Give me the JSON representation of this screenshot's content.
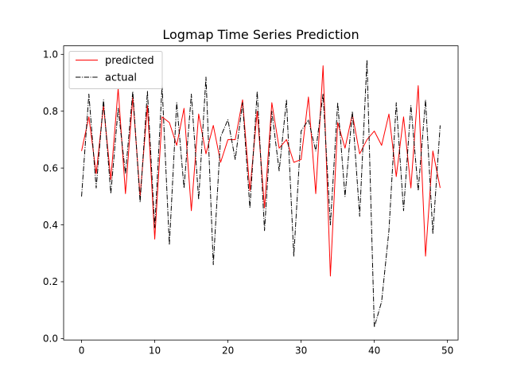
{
  "chart_data": {
    "type": "line",
    "title": "Logmap Time Series Prediction",
    "xlabel": "",
    "ylabel": "",
    "xlim": [
      -2.45,
      51.45
    ],
    "ylim": [
      -0.005,
      1.03
    ],
    "xticks": [
      0,
      10,
      20,
      30,
      40,
      50
    ],
    "yticks": [
      0.0,
      0.2,
      0.4,
      0.6,
      0.8,
      1.0
    ],
    "xtick_labels": [
      "0",
      "10",
      "20",
      "30",
      "40",
      "50"
    ],
    "ytick_labels": [
      "0.0",
      "0.2",
      "0.4",
      "0.6",
      "0.8",
      "1.0"
    ],
    "grid": false,
    "legend_position": "top-left",
    "x": [
      0,
      1,
      2,
      3,
      4,
      5,
      6,
      7,
      8,
      9,
      10,
      11,
      12,
      13,
      14,
      15,
      16,
      17,
      18,
      19,
      20,
      21,
      22,
      23,
      24,
      25,
      26,
      27,
      28,
      29,
      30,
      31,
      32,
      33,
      34,
      35,
      36,
      37,
      38,
      39,
      40,
      41,
      42,
      43,
      44,
      45,
      46,
      47,
      48,
      49
    ],
    "series": [
      {
        "name": "predicted",
        "color": "#ff0000",
        "style": "solid",
        "values": [
          0.66,
          0.78,
          0.58,
          0.82,
          0.56,
          0.88,
          0.51,
          0.85,
          0.5,
          0.82,
          0.35,
          0.78,
          0.76,
          0.68,
          0.81,
          0.45,
          0.79,
          0.65,
          0.75,
          0.62,
          0.7,
          0.7,
          0.84,
          0.52,
          0.8,
          0.46,
          0.83,
          0.67,
          0.7,
          0.62,
          0.63,
          0.85,
          0.51,
          0.96,
          0.22,
          0.76,
          0.67,
          0.79,
          0.65,
          0.7,
          0.73,
          0.68,
          0.79,
          0.57,
          0.78,
          0.53,
          0.89,
          0.29,
          0.66,
          0.53
        ]
      },
      {
        "name": "actual",
        "color": "#000000",
        "style": "dashdot",
        "values": [
          0.5,
          0.86,
          0.53,
          0.84,
          0.51,
          0.81,
          0.58,
          0.87,
          0.48,
          0.87,
          0.39,
          0.89,
          0.33,
          0.83,
          0.53,
          0.86,
          0.49,
          0.92,
          0.26,
          0.71,
          0.77,
          0.63,
          0.83,
          0.46,
          0.87,
          0.38,
          0.8,
          0.59,
          0.84,
          0.29,
          0.73,
          0.77,
          0.66,
          0.86,
          0.4,
          0.83,
          0.5,
          0.8,
          0.43,
          0.98,
          0.04,
          0.13,
          0.38,
          0.83,
          0.45,
          0.82,
          0.52,
          0.84,
          0.37,
          0.75
        ]
      }
    ]
  }
}
